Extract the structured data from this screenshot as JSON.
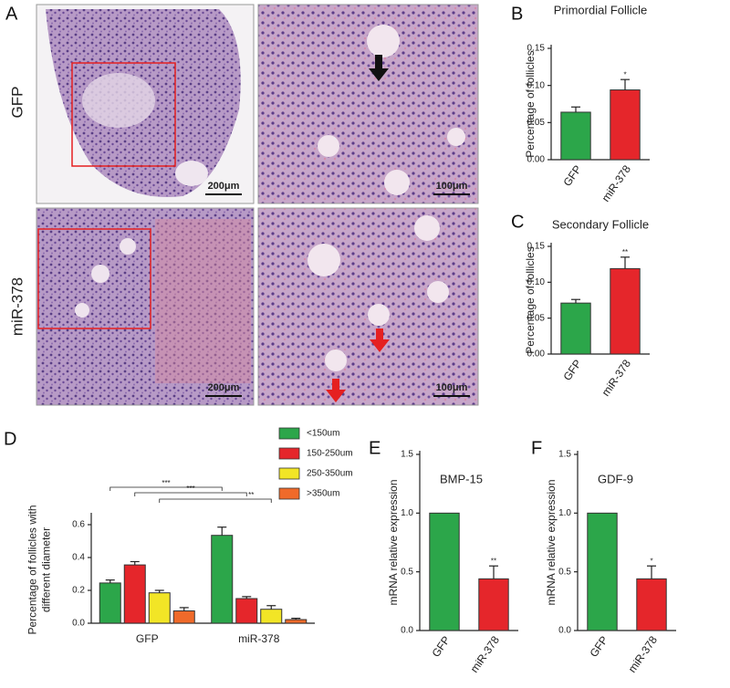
{
  "figure": {
    "panels": [
      "A",
      "B",
      "C",
      "D",
      "E",
      "F"
    ],
    "row_labels": [
      "GFP",
      "miR-378"
    ],
    "scale_bars": [
      "200μm",
      "100μm",
      "200μm",
      "100μm"
    ]
  },
  "chart_data": [
    {
      "type": "bar",
      "title": "Primordial Follicle",
      "ylabel": [
        "Percentage of follicles"
      ],
      "categories": [
        "GFP",
        "miR-378"
      ],
      "values": [
        0.064,
        0.094
      ],
      "errors": [
        0.007,
        0.014
      ],
      "colors": [
        "#2ca64a",
        "#e5262b"
      ],
      "annotations": [
        null,
        "*"
      ],
      "ylim": [
        0,
        0.15
      ],
      "yticks": [
        {
          "value": 0,
          "label": "0.00"
        },
        {
          "value": 0.05,
          "label": "0.05"
        },
        {
          "value": 0.1,
          "label": "0.10"
        },
        {
          "value": 0.15,
          "label": "0.15"
        }
      ]
    },
    {
      "type": "bar",
      "title": "Secondary Follicle",
      "ylabel": [
        "Percentage of follicles"
      ],
      "categories": [
        "GFP",
        "miR-378"
      ],
      "values": [
        0.071,
        0.119
      ],
      "errors": [
        0.005,
        0.016
      ],
      "colors": [
        "#2ca64a",
        "#e5262b"
      ],
      "annotations": [
        null,
        "**"
      ],
      "ylim": [
        0,
        0.15
      ],
      "yticks": [
        {
          "value": 0,
          "label": "0.00"
        },
        {
          "value": 0.05,
          "label": "0.05"
        },
        {
          "value": 0.1,
          "label": "0.10"
        },
        {
          "value": 0.15,
          "label": "0.15"
        }
      ]
    },
    {
      "type": "grouped_bar",
      "ylabel": [
        "Percentage of follicles with",
        "different diameter"
      ],
      "categories": [
        "GFP",
        "miR-378"
      ],
      "series": [
        {
          "name": "<150um",
          "color": "#2ca64a",
          "values": [
            0.245,
            0.535
          ],
          "errors": [
            0.018,
            0.05
          ]
        },
        {
          "name": "150-250um",
          "color": "#e5262b",
          "values": [
            0.355,
            0.15
          ],
          "errors": [
            0.02,
            0.012
          ]
        },
        {
          "name": "250-350um",
          "color": "#f2e526",
          "values": [
            0.185,
            0.085
          ],
          "errors": [
            0.015,
            0.022
          ]
        },
        {
          "name": ">350um",
          "color": "#f06a2a",
          "values": [
            0.075,
            0.022
          ],
          "errors": [
            0.02,
            0.008
          ]
        }
      ],
      "annotations": [
        "***",
        "***",
        "**"
      ],
      "ylim": [
        0,
        0.65
      ],
      "yticks": [
        {
          "value": 0,
          "label": "0.0"
        },
        0.2,
        0.4,
        0.6
      ]
    },
    {
      "type": "bar",
      "title": "BMP-15",
      "ylabel": [
        "mRNA relative expression"
      ],
      "categories": [
        "GFP",
        "miR-378"
      ],
      "values": [
        1.0,
        0.44
      ],
      "errors": [
        0,
        0.11
      ],
      "colors": [
        "#2ca64a",
        "#e5262b"
      ],
      "annotations": [
        null,
        "**"
      ],
      "ylim": [
        0,
        1.5
      ],
      "yticks": [
        {
          "value": 0,
          "label": "0.0"
        },
        0.5,
        {
          "value": 1,
          "label": "1.0"
        },
        1.5
      ]
    },
    {
      "type": "bar",
      "title": "GDF-9",
      "ylabel": [
        "mRNA relative expression"
      ],
      "categories": [
        "GFP",
        "miR-378"
      ],
      "values": [
        1.0,
        0.44
      ],
      "errors": [
        0,
        0.11
      ],
      "colors": [
        "#2ca64a",
        "#e5262b"
      ],
      "annotations": [
        null,
        "*"
      ],
      "ylim": [
        0,
        1.5
      ],
      "yticks": [
        {
          "value": 0,
          "label": "0.0"
        },
        0.5,
        {
          "value": 1,
          "label": "1.0"
        },
        1.5
      ]
    }
  ]
}
